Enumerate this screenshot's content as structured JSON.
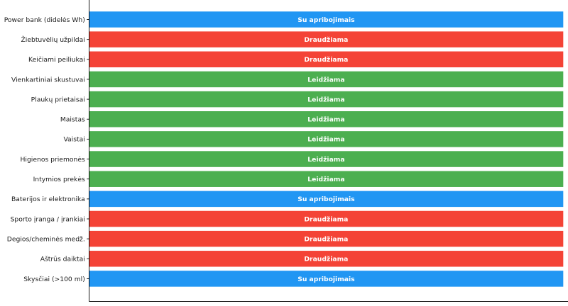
{
  "chart_data": {
    "type": "bar",
    "orientation": "horizontal",
    "categories": [
      "Power bank (didelės Wh)",
      "Žiebtuvėlių užpildai",
      "Keičiami peiliukai",
      "Vienkartiniai skustuvai",
      "Plaukų prietaisai",
      "Maistas",
      "Vaistai",
      "Higienos priemonės",
      "Intymios prekės",
      "Baterijos ir elektronika",
      "Sporto įranga / įrankiai",
      "Degios/cheminės medž.",
      "Aštrūs daiktai",
      "Skysčiai (>100 ml)"
    ],
    "values": [
      1,
      1,
      1,
      1,
      1,
      1,
      1,
      1,
      1,
      1,
      1,
      1,
      1,
      1
    ],
    "bar_labels": [
      "Su apribojimais",
      "Draudžiama",
      "Draudžiama",
      "Leidžiama",
      "Leidžiama",
      "Leidžiama",
      "Leidžiama",
      "Leidžiama",
      "Leidžiama",
      "Su apribojimais",
      "Draudžiama",
      "Draudžiama",
      "Draudžiama",
      "Su apribojimais"
    ],
    "status_colors": {
      "Leidžiama": "#4CAF50",
      "Draudžiama": "#F44336",
      "Su apribojimais": "#2196F3"
    },
    "xlim": [
      0,
      1.01
    ],
    "x_ticks": [],
    "grid": false
  }
}
